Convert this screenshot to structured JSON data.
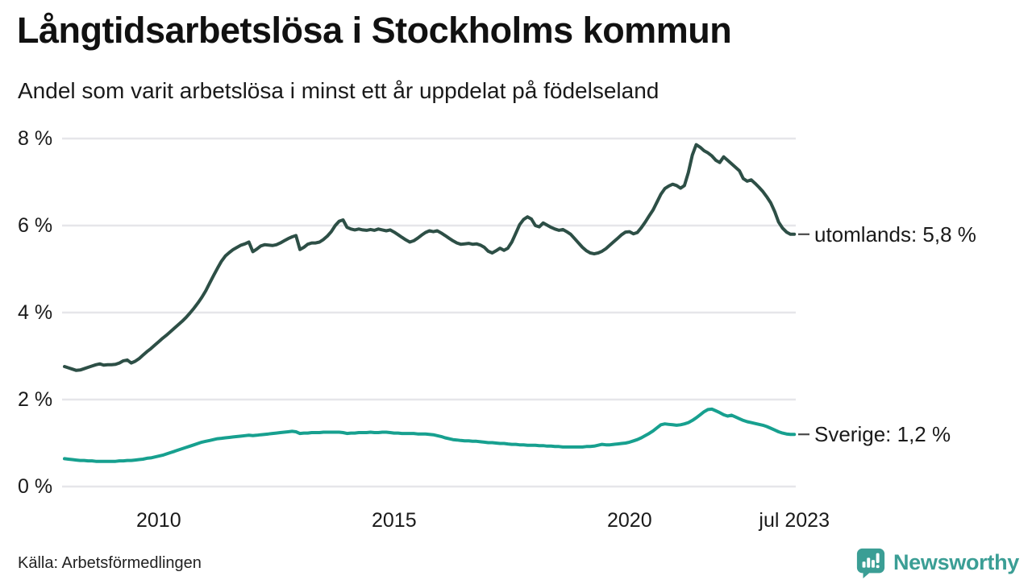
{
  "header": {
    "title": "Långtidsarbetslösa i Stockholms kommun",
    "subtitle": "Andel som varit arbetslösa i minst ett år uppdelat på födelseland"
  },
  "footer": {
    "source": "Källa: Arbetsförmedlingen",
    "logo_text": "Newsworthy",
    "logo_color": "#3b9e95"
  },
  "colors": {
    "grid": "#e6e6ea",
    "text": "#1a1a1a",
    "connector": "#4a4a4a"
  },
  "chart_data": {
    "type": "line",
    "unit": "%",
    "interval": "monthly",
    "start": "2008-01",
    "end": "2023-07",
    "grid": true,
    "legend_position": "end-of-line-labels",
    "ylim": [
      0,
      8
    ],
    "y_axis": {
      "ticks": [
        {
          "value": 0,
          "label": "0 %"
        },
        {
          "value": 2,
          "label": "2 %"
        },
        {
          "value": 4,
          "label": "4 %"
        },
        {
          "value": 6,
          "label": "6 %"
        },
        {
          "value": 8,
          "label": "8 %"
        }
      ]
    },
    "x_axis": {
      "ticks": [
        {
          "t": 2010,
          "label": "2010"
        },
        {
          "t": 2015,
          "label": "2015"
        },
        {
          "t": 2020,
          "label": "2020"
        },
        {
          "t": 2023.5,
          "label": "jul 2023"
        }
      ]
    },
    "series": [
      {
        "name": "utomlands",
        "end_label": "utomlands: 5,8 %",
        "last_value": "5,8 %",
        "color": "#2d4f46",
        "values": [
          2.76,
          2.73,
          2.7,
          2.67,
          2.68,
          2.71,
          2.74,
          2.77,
          2.8,
          2.82,
          2.79,
          2.8,
          2.8,
          2.81,
          2.84,
          2.89,
          2.91,
          2.84,
          2.88,
          2.94,
          3.02,
          3.1,
          3.17,
          3.25,
          3.33,
          3.41,
          3.48,
          3.56,
          3.64,
          3.72,
          3.8,
          3.89,
          3.99,
          4.1,
          4.22,
          4.35,
          4.5,
          4.68,
          4.85,
          5.02,
          5.18,
          5.3,
          5.38,
          5.45,
          5.5,
          5.55,
          5.58,
          5.62,
          5.4,
          5.46,
          5.53,
          5.56,
          5.55,
          5.54,
          5.56,
          5.6,
          5.65,
          5.7,
          5.74,
          5.77,
          5.45,
          5.5,
          5.57,
          5.6,
          5.6,
          5.62,
          5.68,
          5.76,
          5.86,
          6.0,
          6.1,
          6.13,
          5.96,
          5.92,
          5.9,
          5.92,
          5.9,
          5.89,
          5.91,
          5.89,
          5.92,
          5.9,
          5.88,
          5.9,
          5.85,
          5.79,
          5.73,
          5.67,
          5.62,
          5.65,
          5.71,
          5.78,
          5.84,
          5.88,
          5.86,
          5.88,
          5.83,
          5.77,
          5.71,
          5.65,
          5.6,
          5.57,
          5.58,
          5.59,
          5.57,
          5.58,
          5.55,
          5.5,
          5.41,
          5.37,
          5.42,
          5.48,
          5.43,
          5.48,
          5.62,
          5.82,
          6.02,
          6.14,
          6.2,
          6.15,
          6.0,
          5.97,
          6.06,
          6.01,
          5.96,
          5.92,
          5.89,
          5.91,
          5.86,
          5.8,
          5.7,
          5.6,
          5.5,
          5.42,
          5.37,
          5.35,
          5.37,
          5.41,
          5.47,
          5.55,
          5.63,
          5.71,
          5.79,
          5.85,
          5.86,
          5.81,
          5.84,
          5.95,
          6.08,
          6.22,
          6.36,
          6.54,
          6.72,
          6.85,
          6.91,
          6.95,
          6.92,
          6.86,
          6.92,
          7.22,
          7.62,
          7.86,
          7.8,
          7.72,
          7.67,
          7.6,
          7.5,
          7.45,
          7.58,
          7.5,
          7.42,
          7.34,
          7.26,
          7.08,
          7.02,
          7.05,
          6.97,
          6.88,
          6.78,
          6.66,
          6.52,
          6.32,
          6.08,
          5.94,
          5.85,
          5.8,
          5.8
        ]
      },
      {
        "name": "Sverige",
        "end_label": "Sverige: 1,2 %",
        "last_value": "1,2 %",
        "color": "#17a08f",
        "values": [
          0.64,
          0.63,
          0.62,
          0.61,
          0.6,
          0.6,
          0.59,
          0.59,
          0.58,
          0.58,
          0.58,
          0.58,
          0.58,
          0.58,
          0.59,
          0.59,
          0.6,
          0.6,
          0.61,
          0.62,
          0.63,
          0.65,
          0.66,
          0.68,
          0.7,
          0.72,
          0.75,
          0.78,
          0.81,
          0.84,
          0.87,
          0.9,
          0.93,
          0.96,
          0.99,
          1.02,
          1.04,
          1.06,
          1.08,
          1.1,
          1.11,
          1.12,
          1.13,
          1.14,
          1.15,
          1.16,
          1.17,
          1.18,
          1.17,
          1.18,
          1.19,
          1.2,
          1.21,
          1.22,
          1.23,
          1.24,
          1.25,
          1.26,
          1.27,
          1.26,
          1.22,
          1.23,
          1.23,
          1.24,
          1.24,
          1.24,
          1.25,
          1.25,
          1.25,
          1.25,
          1.25,
          1.24,
          1.22,
          1.23,
          1.23,
          1.24,
          1.24,
          1.24,
          1.25,
          1.24,
          1.24,
          1.25,
          1.25,
          1.24,
          1.23,
          1.23,
          1.22,
          1.22,
          1.22,
          1.22,
          1.21,
          1.21,
          1.21,
          1.2,
          1.19,
          1.17,
          1.15,
          1.12,
          1.1,
          1.08,
          1.07,
          1.06,
          1.05,
          1.05,
          1.04,
          1.04,
          1.03,
          1.02,
          1.01,
          1.01,
          1.0,
          0.99,
          0.99,
          0.98,
          0.97,
          0.97,
          0.96,
          0.96,
          0.95,
          0.95,
          0.95,
          0.94,
          0.94,
          0.93,
          0.93,
          0.92,
          0.92,
          0.91,
          0.91,
          0.91,
          0.91,
          0.91,
          0.91,
          0.92,
          0.92,
          0.93,
          0.95,
          0.97,
          0.96,
          0.96,
          0.97,
          0.98,
          0.99,
          1.0,
          1.02,
          1.05,
          1.08,
          1.12,
          1.17,
          1.22,
          1.28,
          1.35,
          1.42,
          1.44,
          1.43,
          1.42,
          1.41,
          1.42,
          1.44,
          1.47,
          1.52,
          1.58,
          1.65,
          1.72,
          1.77,
          1.78,
          1.74,
          1.7,
          1.65,
          1.62,
          1.64,
          1.6,
          1.56,
          1.52,
          1.49,
          1.47,
          1.45,
          1.43,
          1.41,
          1.38,
          1.34,
          1.3,
          1.26,
          1.23,
          1.21,
          1.2,
          1.2
        ]
      }
    ]
  }
}
